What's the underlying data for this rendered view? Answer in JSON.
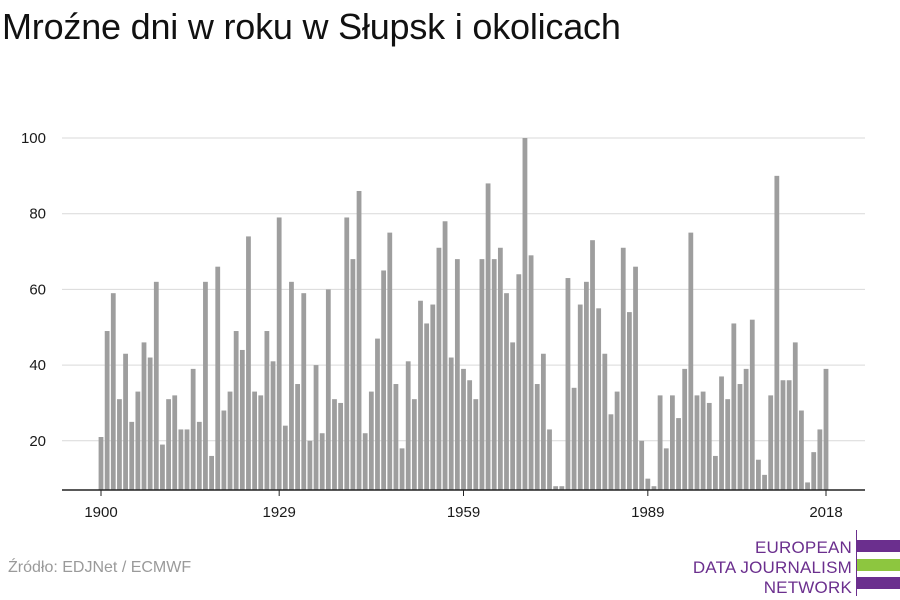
{
  "title": "Mroźne dni w roku w Słupsk i okolicach",
  "source": "Źródło: EDJNet / ECMWF",
  "logo": {
    "lines": [
      "EUROPEAN",
      "DATA JOURNALISM",
      "NETWORK"
    ],
    "colors": {
      "purple": "#6b2f8e",
      "green": "#8dc63f"
    }
  },
  "colors": {
    "bar": "#9e9e9e",
    "grid": "#d9d9d9",
    "axis": "#222222"
  },
  "chart_data": {
    "type": "bar",
    "title": "Mroźne dni w roku w Słupsk i okolicach",
    "xlabel": "",
    "ylabel": "",
    "ylim": [
      7,
      100
    ],
    "yticks": [
      20,
      40,
      60,
      80,
      100
    ],
    "xticks": [
      1900,
      1929,
      1959,
      1989,
      2018
    ],
    "grid": true,
    "categories": [
      1900,
      1901,
      1902,
      1903,
      1904,
      1905,
      1906,
      1907,
      1908,
      1909,
      1910,
      1911,
      1912,
      1913,
      1914,
      1915,
      1916,
      1917,
      1918,
      1919,
      1920,
      1921,
      1922,
      1923,
      1924,
      1925,
      1926,
      1927,
      1928,
      1929,
      1930,
      1931,
      1932,
      1933,
      1934,
      1935,
      1936,
      1937,
      1938,
      1939,
      1940,
      1941,
      1942,
      1943,
      1944,
      1945,
      1946,
      1947,
      1948,
      1949,
      1950,
      1951,
      1952,
      1953,
      1954,
      1955,
      1956,
      1957,
      1958,
      1959,
      1960,
      1961,
      1962,
      1963,
      1964,
      1965,
      1966,
      1967,
      1968,
      1969,
      1970,
      1971,
      1972,
      1973,
      1974,
      1975,
      1976,
      1977,
      1978,
      1979,
      1980,
      1981,
      1982,
      1983,
      1984,
      1985,
      1986,
      1987,
      1988,
      1989,
      1990,
      1991,
      1992,
      1993,
      1994,
      1995,
      1996,
      1997,
      1998,
      1999,
      2000,
      2001,
      2002,
      2003,
      2004,
      2005,
      2006,
      2007,
      2008,
      2009,
      2010,
      2011,
      2012,
      2013,
      2014,
      2015,
      2016,
      2017,
      2018
    ],
    "values": [
      21,
      49,
      59,
      31,
      43,
      25,
      33,
      46,
      42,
      62,
      19,
      31,
      32,
      23,
      23,
      39,
      25,
      62,
      16,
      66,
      28,
      33,
      49,
      44,
      74,
      33,
      32,
      49,
      41,
      79,
      24,
      62,
      35,
      59,
      20,
      40,
      22,
      60,
      31,
      30,
      79,
      68,
      86,
      22,
      33,
      47,
      65,
      75,
      35,
      18,
      41,
      31,
      57,
      51,
      56,
      71,
      78,
      42,
      68,
      39,
      36,
      31,
      68,
      88,
      68,
      71,
      59,
      46,
      64,
      100,
      69,
      35,
      43,
      23,
      8,
      8,
      63,
      34,
      56,
      62,
      73,
      55,
      43,
      27,
      33,
      71,
      54,
      66,
      20,
      10,
      8,
      32,
      18,
      32,
      26,
      39,
      75,
      32,
      33,
      30,
      16,
      37,
      31,
      51,
      35,
      39,
      52,
      15,
      11,
      32,
      90,
      36,
      36,
      46,
      28,
      9,
      17,
      23,
      39
    ]
  }
}
